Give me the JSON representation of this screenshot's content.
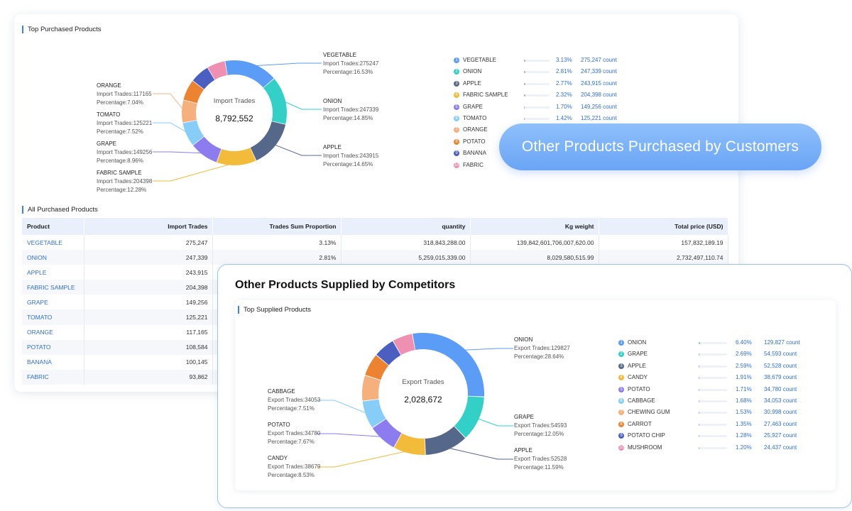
{
  "customers": {
    "top_title": "Top Purchased Products",
    "all_title": "All Purchased Products",
    "donut": {
      "center_label": "Import Trades",
      "center_value": "8,792,552",
      "slices": [
        {
          "name": "VEGETABLE",
          "color": "#5b9cf7",
          "trades": "275247",
          "pct": "16.53%"
        },
        {
          "name": "ONION",
          "color": "#33d0c7",
          "trades": "247339",
          "pct": "14.85%"
        },
        {
          "name": "APPLE",
          "color": "#56688a",
          "trades": "243915",
          "pct": "14.65%"
        },
        {
          "name": "FABRIC SAMPLE",
          "color": "#f3bb3a",
          "trades": "204398",
          "pct": "12.28%"
        },
        {
          "name": "GRAPE",
          "color": "#8c7cf0",
          "trades": "149256",
          "pct": "8.96%"
        },
        {
          "name": "TOMATO",
          "color": "#86cdf8",
          "trades": "125221",
          "pct": "7.52%"
        },
        {
          "name": "ORANGE",
          "color": "#f5b07e",
          "trades": "117165",
          "pct": "7.04%"
        },
        {
          "name": "POTATO",
          "color": "#ec8331",
          "trades": "",
          "pct": ""
        },
        {
          "name": "BANANA",
          "color": "#4a5fc0",
          "trades": "",
          "pct": ""
        },
        {
          "name": "FABRIC",
          "color": "#ef8fb2",
          "trades": "",
          "pct": ""
        }
      ],
      "callout_trades_prefix": "Import Trades:",
      "callout_pct_prefix": "Percentage:"
    },
    "legend": [
      {
        "num": "1",
        "name": "VEGETABLE",
        "pct": "3.13%",
        "count": "275,247 count",
        "color": "#5b9cf7"
      },
      {
        "num": "2",
        "name": "ONION",
        "pct": "2.81%",
        "count": "247,339 count",
        "color": "#33d0c7"
      },
      {
        "num": "3",
        "name": "APPLE",
        "pct": "2.77%",
        "count": "243,915 count",
        "color": "#56688a"
      },
      {
        "num": "4",
        "name": "FABRIC SAMPLE",
        "pct": "2.32%",
        "count": "204,398 count",
        "color": "#f3bb3a"
      },
      {
        "num": "5",
        "name": "GRAPE",
        "pct": "1.70%",
        "count": "149,256 count",
        "color": "#8c7cf0"
      },
      {
        "num": "6",
        "name": "TOMATO",
        "pct": "1.42%",
        "count": "125,221 count",
        "color": "#86cdf8"
      },
      {
        "num": "7",
        "name": "ORANGE",
        "pct": "",
        "count": "",
        "color": "#f5b07e"
      },
      {
        "num": "8",
        "name": "POTATO",
        "pct": "",
        "count": "",
        "color": "#ec8331"
      },
      {
        "num": "9",
        "name": "BANANA",
        "pct": "",
        "count": "",
        "color": "#4a5fc0"
      },
      {
        "num": "10",
        "name": "FABRIC",
        "pct": "",
        "count": "",
        "color": "#ef8fb2"
      }
    ],
    "table": {
      "headers": [
        "Product",
        "Import Trades",
        "Trades Sum Proportion",
        "quantity",
        "Kg weight",
        "Total price (USD)"
      ],
      "rows": [
        [
          "VEGETABLE",
          "275,247",
          "3.13%",
          "318,843,288.00",
          "139,842,601,706,007,620.00",
          "157,832,189.19"
        ],
        [
          "ONION",
          "247,339",
          "2.81%",
          "5,259,015,339.00",
          "8,029,580,515.99",
          "2,732,497,110.74"
        ],
        [
          "APPLE",
          "243,915",
          "",
          "",
          "",
          ""
        ],
        [
          "FABRIC SAMPLE",
          "204,398",
          "",
          "",
          "",
          ""
        ],
        [
          "GRAPE",
          "149,256",
          "",
          "",
          "",
          ""
        ],
        [
          "TOMATO",
          "125,221",
          "",
          "",
          "",
          ""
        ],
        [
          "ORANGE",
          "117,165",
          "",
          "",
          "",
          ""
        ],
        [
          "POTATO",
          "108,584",
          "",
          "",
          "",
          ""
        ],
        [
          "BANANA",
          "100,145",
          "",
          "",
          "",
          ""
        ],
        [
          "FABRIC",
          "93,862",
          "",
          "",
          "",
          ""
        ]
      ]
    },
    "pill_label": "Other Products Purchased by Customers"
  },
  "competitors": {
    "card_title": "Other Products Supplied by Competitors",
    "top_title": "Top Supplied Products",
    "donut": {
      "center_label": "Export Trades",
      "center_value": "2,028,672",
      "slices": [
        {
          "name": "ONION",
          "color": "#5b9cf7",
          "trades": "129827",
          "pct": "28.64%"
        },
        {
          "name": "GRAPE",
          "color": "#33d0c7",
          "trades": "54593",
          "pct": "12.05%"
        },
        {
          "name": "APPLE",
          "color": "#56688a",
          "trades": "52528",
          "pct": "11.59%"
        },
        {
          "name": "CANDY",
          "color": "#f3bb3a",
          "trades": "38679",
          "pct": "8.53%"
        },
        {
          "name": "POTATO",
          "color": "#8c7cf0",
          "trades": "34780",
          "pct": "7.67%"
        },
        {
          "name": "CABBAGE",
          "color": "#86cdf8",
          "trades": "34053",
          "pct": "7.51%"
        },
        {
          "name": "CHEWING GUM",
          "color": "#f5b07e",
          "trades": "",
          "pct": ""
        },
        {
          "name": "CARROT",
          "color": "#ec8331",
          "trades": "",
          "pct": ""
        },
        {
          "name": "POTATO CHIP",
          "color": "#4a5fc0",
          "trades": "",
          "pct": ""
        },
        {
          "name": "MUSHROOM",
          "color": "#ef8fb2",
          "trades": "",
          "pct": ""
        }
      ],
      "callout_trades_prefix": "Export Trades:",
      "callout_pct_prefix": "Percentage:"
    },
    "legend": [
      {
        "num": "1",
        "name": "ONION",
        "pct": "6.40%",
        "count": "129,827 count",
        "color": "#5b9cf7"
      },
      {
        "num": "2",
        "name": "GRAPE",
        "pct": "2.69%",
        "count": "54,593 count",
        "color": "#33d0c7"
      },
      {
        "num": "3",
        "name": "APPLE",
        "pct": "2.59%",
        "count": "52,528 count",
        "color": "#56688a"
      },
      {
        "num": "4",
        "name": "CANDY",
        "pct": "1.91%",
        "count": "38,679 count",
        "color": "#f3bb3a"
      },
      {
        "num": "5",
        "name": "POTATO",
        "pct": "1.71%",
        "count": "34,780 count",
        "color": "#8c7cf0"
      },
      {
        "num": "6",
        "name": "CABBAGE",
        "pct": "1.68%",
        "count": "34,053 count",
        "color": "#86cdf8"
      },
      {
        "num": "7",
        "name": "CHEWING GUM",
        "pct": "1.53%",
        "count": "30,998 count",
        "color": "#f5b07e"
      },
      {
        "num": "8",
        "name": "CARROT",
        "pct": "1.35%",
        "count": "27,463 count",
        "color": "#ec8331"
      },
      {
        "num": "9",
        "name": "POTATO CHIP",
        "pct": "1.28%",
        "count": "25,927 count",
        "color": "#4a5fc0"
      },
      {
        "num": "10",
        "name": "MUSHROOM",
        "pct": "1.20%",
        "count": "24,437 count",
        "color": "#ef8fb2"
      }
    ]
  }
}
